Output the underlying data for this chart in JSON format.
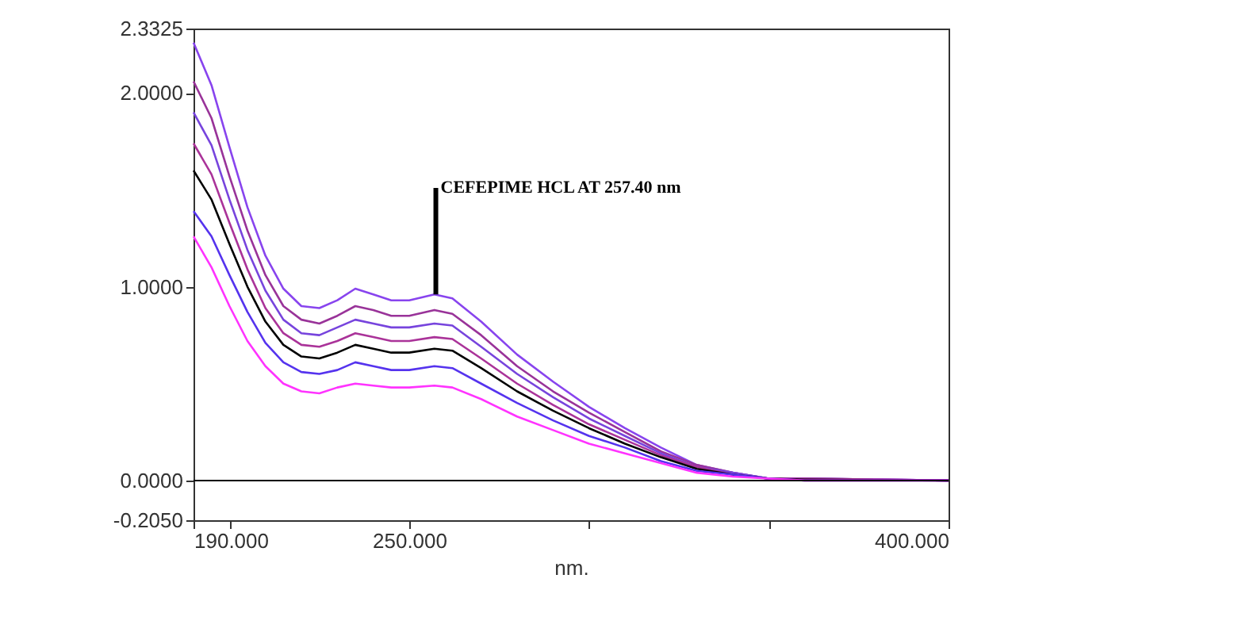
{
  "chart_data": {
    "type": "line",
    "xlabel": "nm.",
    "x": [
      190,
      195,
      200,
      205,
      210,
      215,
      220,
      225,
      230,
      235,
      240,
      245,
      250,
      257,
      262,
      270,
      280,
      290,
      300,
      310,
      320,
      330,
      340,
      350,
      360,
      400
    ],
    "series": [
      {
        "color": "#8844ee",
        "values": [
          2.26,
          2.04,
          1.72,
          1.41,
          1.16,
          0.99,
          0.9,
          0.89,
          0.93,
          0.99,
          0.96,
          0.93,
          0.93,
          0.96,
          0.94,
          0.82,
          0.65,
          0.51,
          0.38,
          0.27,
          0.17,
          0.08,
          0.04,
          0.01,
          0.01,
          0.0
        ]
      },
      {
        "color": "#993399",
        "values": [
          2.06,
          1.87,
          1.57,
          1.29,
          1.06,
          0.9,
          0.83,
          0.81,
          0.85,
          0.9,
          0.88,
          0.85,
          0.85,
          0.88,
          0.86,
          0.75,
          0.59,
          0.46,
          0.35,
          0.25,
          0.15,
          0.08,
          0.04,
          0.01,
          0.01,
          0.0
        ]
      },
      {
        "color": "#7744dd",
        "values": [
          1.9,
          1.73,
          1.45,
          1.19,
          0.98,
          0.83,
          0.76,
          0.75,
          0.79,
          0.83,
          0.81,
          0.79,
          0.79,
          0.81,
          0.8,
          0.69,
          0.55,
          0.43,
          0.32,
          0.23,
          0.14,
          0.07,
          0.04,
          0.01,
          0.01,
          0.0
        ]
      },
      {
        "color": "#aa3399",
        "values": [
          1.74,
          1.58,
          1.33,
          1.09,
          0.89,
          0.76,
          0.7,
          0.69,
          0.72,
          0.76,
          0.74,
          0.72,
          0.72,
          0.74,
          0.73,
          0.63,
          0.5,
          0.39,
          0.29,
          0.21,
          0.13,
          0.07,
          0.03,
          0.01,
          0.01,
          0.0
        ]
      },
      {
        "color": "#000000",
        "values": [
          1.6,
          1.45,
          1.22,
          1.0,
          0.82,
          0.7,
          0.64,
          0.63,
          0.66,
          0.7,
          0.68,
          0.66,
          0.66,
          0.68,
          0.67,
          0.58,
          0.46,
          0.36,
          0.27,
          0.19,
          0.12,
          0.06,
          0.03,
          0.01,
          0.005,
          0.0
        ]
      },
      {
        "color": "#5533ee",
        "values": [
          1.39,
          1.26,
          1.06,
          0.87,
          0.71,
          0.61,
          0.56,
          0.55,
          0.57,
          0.61,
          0.59,
          0.57,
          0.57,
          0.59,
          0.58,
          0.5,
          0.4,
          0.31,
          0.23,
          0.17,
          0.1,
          0.05,
          0.03,
          0.01,
          0.0,
          0.0
        ]
      },
      {
        "color": "#ff33ff",
        "values": [
          1.26,
          1.1,
          0.9,
          0.72,
          0.59,
          0.5,
          0.46,
          0.45,
          0.48,
          0.5,
          0.49,
          0.48,
          0.48,
          0.49,
          0.48,
          0.42,
          0.33,
          0.26,
          0.19,
          0.14,
          0.09,
          0.04,
          0.02,
          0.01,
          0.0,
          0.0
        ]
      }
    ],
    "xlim": [
      190,
      400
    ],
    "xticks": [
      {
        "value": 190,
        "label": "190.000"
      },
      {
        "value": 200,
        "label": null
      },
      {
        "value": 250,
        "label": "250.000"
      },
      {
        "value": 300,
        "label": null
      },
      {
        "value": 350,
        "label": null
      },
      {
        "value": 400,
        "label": "400.000"
      }
    ],
    "ylim": [
      -0.205,
      2.3325
    ],
    "yticks": [
      {
        "value": -0.205,
        "label": "-0.2050"
      },
      {
        "value": 0,
        "label": "0.0000"
      },
      {
        "value": 1,
        "label": "1.0000"
      },
      {
        "value": 2,
        "label": "2.0000"
      },
      {
        "value": 2.3325,
        "label": "2.3325"
      }
    ],
    "ref_lines": [
      {
        "axis": "y",
        "value": 0,
        "color": "#000000"
      }
    ],
    "annotations": [
      {
        "text": "CEFEPIME HCL AT 257.40 nm",
        "x": 257.4,
        "y": 0.96
      }
    ],
    "grid": false,
    "legend": false,
    "marker": "none",
    "line_style": "solid"
  }
}
